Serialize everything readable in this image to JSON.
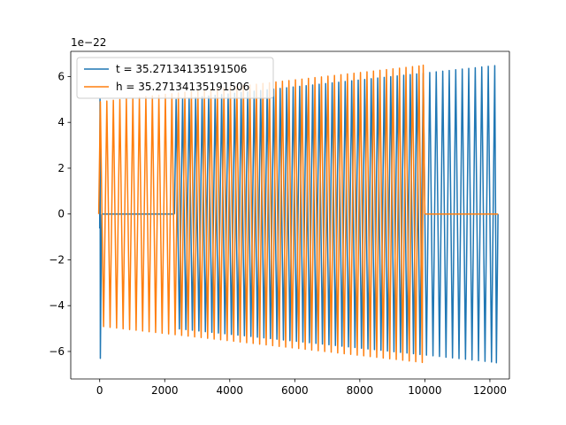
{
  "chart_data": {
    "type": "line",
    "title": "",
    "xlabel": "",
    "ylabel": "",
    "offset_text": "1e−22",
    "xlim": [
      -890,
      12600
    ],
    "ylim": [
      -7.2,
      7.1
    ],
    "grid": false,
    "legend_position": "top-left",
    "x_ticks": [
      0,
      2000,
      4000,
      6000,
      8000,
      10000,
      12000
    ],
    "x_tick_labels": [
      "0",
      "2000",
      "4000",
      "6000",
      "8000",
      "10000",
      "12000"
    ],
    "y_ticks": [
      -6,
      -4,
      -2,
      0,
      2,
      4,
      6
    ],
    "y_tick_labels": [
      "−6",
      "−4",
      "−2",
      "0",
      "2",
      "4",
      "6"
    ],
    "series": [
      {
        "name": "t = 35.27134135191506",
        "color": "#1f77b4",
        "cycle_period": 200,
        "segments": [
          {
            "x_start": 0,
            "x_end": 60,
            "amp_start": 6.3,
            "amp_end": 6.3,
            "kind": "burst"
          },
          {
            "x_start": 60,
            "x_end": 2300,
            "amp_start": 0.0,
            "amp_end": 0.0,
            "kind": "flat"
          },
          {
            "x_start": 2300,
            "x_end": 12250,
            "amp_start": 5.0,
            "amp_end": 6.5,
            "kind": "oscillation"
          }
        ]
      },
      {
        "name": "h = 35.27134135191506",
        "color": "#ff7f0e",
        "cycle_period": 200,
        "segments": [
          {
            "x_start": -30,
            "x_end": 10000,
            "amp_start": 4.9,
            "amp_end": 6.5,
            "kind": "oscillation"
          },
          {
            "x_start": 10000,
            "x_end": 12250,
            "amp_start": 0.0,
            "amp_end": 0.0,
            "kind": "flat"
          }
        ]
      }
    ]
  }
}
